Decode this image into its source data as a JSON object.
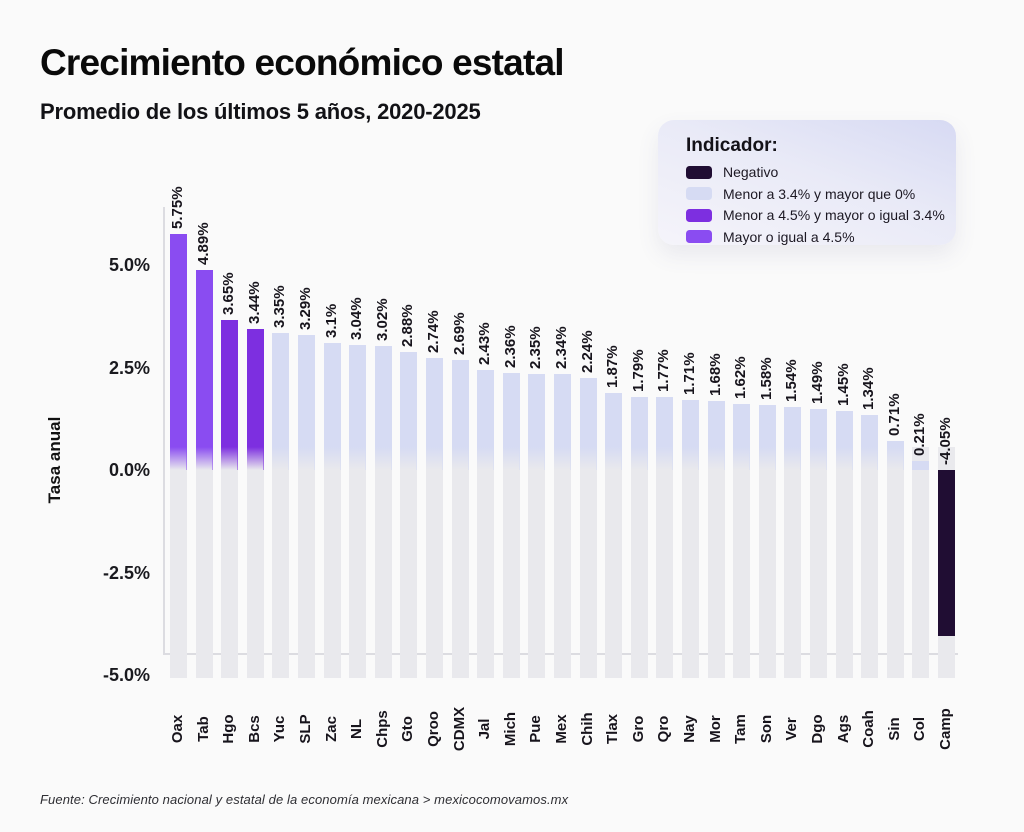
{
  "page": {
    "background": "#fafafa"
  },
  "header": {
    "title": "Crecimiento económico estatal",
    "subtitle": "Promedio de los últimos 5 años, 2020-2025"
  },
  "legend": {
    "title": "Indicador:",
    "items": [
      {
        "label": "Negativo",
        "color": "#200d33",
        "min": null,
        "max": 0
      },
      {
        "label": "Menor a 3.4% y mayor que 0%",
        "color": "#d6dbf3",
        "min": 0,
        "max": 3.4
      },
      {
        "label": "Menor a 4.5% y mayor o igual 3.4%",
        "color": "#7d2fe0",
        "min": 3.4,
        "max": 4.5
      },
      {
        "label": "Mayor o igual a 4.5%",
        "color": "#8a4cf1",
        "min": 4.5,
        "max": null
      }
    ]
  },
  "chart_data": {
    "type": "bar",
    "title": "Crecimiento económico estatal",
    "subtitle": "Promedio de los últimos 5 años, 2020-2025",
    "ylabel": "Tasa anual",
    "xlabel": "",
    "ylim": [
      -5.5,
      6
    ],
    "grid": "off",
    "legend_position": "top-right",
    "yticks": [
      {
        "label": "5.0%",
        "value": 5.0
      },
      {
        "label": "2.5%",
        "value": 2.5
      },
      {
        "label": "0.0%",
        "value": 0.0
      },
      {
        "label": "-2.5%",
        "value": -2.5
      },
      {
        "label": "-5.0%",
        "value": -5.0
      }
    ],
    "categories": [
      "Oax",
      "Tab",
      "Hgo",
      "Bcs",
      "Yuc",
      "SLP",
      "Zac",
      "NL",
      "Chps",
      "Gto",
      "Qroo",
      "CDMX",
      "Jal",
      "Mich",
      "Pue",
      "Mex",
      "Chih",
      "Tlax",
      "Gro",
      "Qro",
      "Nay",
      "Mor",
      "Tam",
      "Son",
      "Ver",
      "Dgo",
      "Ags",
      "Coah",
      "Sin",
      "Col",
      "Camp"
    ],
    "values": [
      5.75,
      4.89,
      3.65,
      3.44,
      3.35,
      3.29,
      3.1,
      3.04,
      3.02,
      2.88,
      2.74,
      2.69,
      2.43,
      2.36,
      2.35,
      2.34,
      2.24,
      1.87,
      1.79,
      1.77,
      1.71,
      1.68,
      1.62,
      1.58,
      1.54,
      1.49,
      1.45,
      1.34,
      0.71,
      0.21,
      -4.05
    ],
    "value_labels": [
      "5.75%",
      "4.89%",
      "3.65%",
      "3.44%",
      "3.35%",
      "3.29%",
      "3.1%",
      "3.04%",
      "3.02%",
      "2.88%",
      "2.74%",
      "2.69%",
      "2.43%",
      "2.36%",
      "2.35%",
      "2.34%",
      "2.24%",
      "1.87%",
      "1.79%",
      "1.77%",
      "1.71%",
      "1.68%",
      "1.62%",
      "1.58%",
      "1.54%",
      "1.49%",
      "1.45%",
      "1.34%",
      "0.71%",
      "0.21%",
      "-4.05%"
    ],
    "colors": {
      "track": "#e9e9ed",
      "bar_low": "#d6dbf3",
      "bar_mid": "#7d2fe0",
      "bar_high": "#8a4cf1",
      "bar_negative": "#200d33",
      "axis_line": "#dcdce1"
    }
  },
  "source": {
    "text": "Fuente: Crecimiento nacional y estatal de la economía mexicana > mexicocomovamos.mx"
  }
}
